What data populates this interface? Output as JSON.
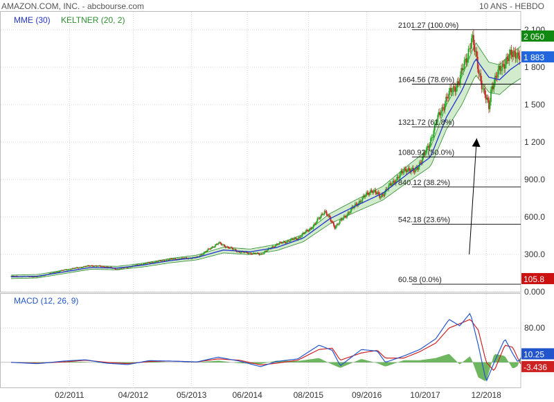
{
  "header": {
    "title": "AMAZON.COM, INC. - abcbourse.com",
    "period": "10 ANS - HEBDO"
  },
  "colors": {
    "candle_up": "#22aa22",
    "candle_down": "#cc2222",
    "mme": "#2233cc",
    "keltner_fill": "#c9e8c3",
    "keltner_line": "#2e8b2e",
    "fib_line": "#000000",
    "price_badge": "#2266dd",
    "high_badge": "#118811",
    "low_badge": "#cc1111",
    "macd_line": "#2255cc",
    "signal_line": "#cc2222",
    "histogram": "#55aa44"
  },
  "chart_data": [
    {
      "type": "line",
      "title": "AMAZON.COM, INC.",
      "legend": [
        "MME (30)",
        "KELTNER (20, 2)"
      ],
      "x_ticks": [
        "02/2011",
        "04/2012",
        "05/2013",
        "06/2014",
        "08/2015",
        "09/2016",
        "10/2017",
        "12/2018"
      ],
      "x_tick_pos": [
        2011.1,
        2012.3,
        2013.4,
        2014.45,
        2015.6,
        2016.7,
        2017.8,
        2018.95
      ],
      "x_range": [
        2010.0,
        2019.6
      ],
      "y_ticks": [
        "2 100",
        "1 800",
        "1 500",
        "1 200",
        "900.0",
        "600.0",
        "300.0",
        "0.000"
      ],
      "y_tick_values": [
        2100,
        1800,
        1500,
        1200,
        900,
        600,
        300,
        0
      ],
      "ylim": [
        0,
        2150
      ],
      "price_path": [
        [
          2010.0,
          125
        ],
        [
          2010.5,
          120
        ],
        [
          2011.0,
          175
        ],
        [
          2011.5,
          210
        ],
        [
          2011.8,
          200
        ],
        [
          2012.0,
          180
        ],
        [
          2012.5,
          225
        ],
        [
          2013.0,
          260
        ],
        [
          2013.5,
          275
        ],
        [
          2013.9,
          390
        ],
        [
          2014.3,
          320
        ],
        [
          2014.7,
          300
        ],
        [
          2015.0,
          380
        ],
        [
          2015.4,
          430
        ],
        [
          2015.7,
          530
        ],
        [
          2015.9,
          650
        ],
        [
          2016.1,
          520
        ],
        [
          2016.5,
          700
        ],
        [
          2016.8,
          820
        ],
        [
          2016.95,
          760
        ],
        [
          2017.2,
          880
        ],
        [
          2017.45,
          990
        ],
        [
          2017.6,
          960
        ],
        [
          2017.85,
          1150
        ],
        [
          2018.0,
          1350
        ],
        [
          2018.2,
          1550
        ],
        [
          2018.45,
          1700
        ],
        [
          2018.68,
          2030
        ],
        [
          2018.9,
          1600
        ],
        [
          2019.0,
          1480
        ],
        [
          2019.05,
          1650
        ],
        [
          2019.3,
          1850
        ],
        [
          2019.5,
          1920
        ],
        [
          2019.6,
          1880
        ]
      ],
      "mme_path": [
        [
          2010.0,
          120
        ],
        [
          2010.5,
          125
        ],
        [
          2011.0,
          160
        ],
        [
          2011.5,
          195
        ],
        [
          2012.0,
          190
        ],
        [
          2012.5,
          215
        ],
        [
          2013.0,
          250
        ],
        [
          2013.5,
          275
        ],
        [
          2014.0,
          335
        ],
        [
          2014.5,
          320
        ],
        [
          2015.0,
          355
        ],
        [
          2015.5,
          430
        ],
        [
          2016.0,
          585
        ],
        [
          2016.5,
          690
        ],
        [
          2017.0,
          790
        ],
        [
          2017.5,
          955
        ],
        [
          2017.9,
          1080
        ],
        [
          2018.2,
          1400
        ],
        [
          2018.5,
          1620
        ],
        [
          2018.75,
          1870
        ],
        [
          2019.0,
          1720
        ],
        [
          2019.2,
          1700
        ],
        [
          2019.4,
          1780
        ],
        [
          2019.6,
          1840
        ]
      ],
      "keltner_width_pct": 0.07,
      "fibonacci": [
        {
          "label": "2101.27  (100.0%)",
          "value": 2101.27
        },
        {
          "label": "1664.56  (78.6%)",
          "value": 1664.56
        },
        {
          "label": "1321.72  (61.8%)",
          "value": 1321.72
        },
        {
          "label": "1080.92  (50.0%)",
          "value": 1080.92
        },
        {
          "label": "840.12  (38.2%)",
          "value": 840.12
        },
        {
          "label": "542.18  (23.6%)",
          "value": 542.18
        },
        {
          "label": "60.58  (0.0%)",
          "value": 60.58
        }
      ],
      "fib_x_start": 2017.55,
      "badges": {
        "high": "2 050",
        "high_value": 2050,
        "last": "1 883",
        "last_value": 1883,
        "low": "105.8",
        "low_value": 105.8
      },
      "annotation_arrow": {
        "from": [
          2018.63,
          300
        ],
        "to": [
          2018.77,
          1230
        ]
      }
    },
    {
      "type": "line",
      "title": "MACD (12, 26, 9)",
      "legend": [
        "MACD (12, 26, 9)"
      ],
      "y_ticks": [
        "80.00"
      ],
      "y_tick_values": [
        80
      ],
      "ylim": [
        -60,
        140
      ],
      "macd_path": [
        [
          2010.0,
          0
        ],
        [
          2010.5,
          -3
        ],
        [
          2011.0,
          3
        ],
        [
          2011.4,
          6
        ],
        [
          2011.8,
          -2
        ],
        [
          2012.2,
          -5
        ],
        [
          2012.6,
          4
        ],
        [
          2013.0,
          3
        ],
        [
          2013.5,
          1
        ],
        [
          2013.9,
          12
        ],
        [
          2014.3,
          3
        ],
        [
          2014.7,
          -10
        ],
        [
          2015.0,
          2
        ],
        [
          2015.4,
          8
        ],
        [
          2015.8,
          40
        ],
        [
          2016.05,
          28
        ],
        [
          2016.2,
          -8
        ],
        [
          2016.6,
          30
        ],
        [
          2016.9,
          26
        ],
        [
          2017.05,
          0
        ],
        [
          2017.4,
          15
        ],
        [
          2017.7,
          30
        ],
        [
          2018.0,
          55
        ],
        [
          2018.25,
          100
        ],
        [
          2018.45,
          85
        ],
        [
          2018.65,
          115
        ],
        [
          2018.8,
          40
        ],
        [
          2018.95,
          -45
        ],
        [
          2019.1,
          0
        ],
        [
          2019.3,
          55
        ],
        [
          2019.45,
          20
        ],
        [
          2019.55,
          0
        ],
        [
          2019.6,
          10.25
        ]
      ],
      "signal_path": [
        [
          2010.0,
          0
        ],
        [
          2010.5,
          -2
        ],
        [
          2011.0,
          1
        ],
        [
          2011.4,
          5
        ],
        [
          2011.8,
          0
        ],
        [
          2012.2,
          -3
        ],
        [
          2012.6,
          2
        ],
        [
          2013.0,
          3
        ],
        [
          2013.5,
          1
        ],
        [
          2013.9,
          8
        ],
        [
          2014.3,
          5
        ],
        [
          2014.7,
          -6
        ],
        [
          2015.0,
          -2
        ],
        [
          2015.4,
          5
        ],
        [
          2015.8,
          30
        ],
        [
          2016.05,
          33
        ],
        [
          2016.2,
          5
        ],
        [
          2016.6,
          22
        ],
        [
          2016.9,
          28
        ],
        [
          2017.05,
          10
        ],
        [
          2017.4,
          10
        ],
        [
          2017.7,
          25
        ],
        [
          2018.0,
          45
        ],
        [
          2018.25,
          80
        ],
        [
          2018.45,
          90
        ],
        [
          2018.65,
          100
        ],
        [
          2018.8,
          75
        ],
        [
          2018.95,
          0
        ],
        [
          2019.1,
          -20
        ],
        [
          2019.3,
          40
        ],
        [
          2019.45,
          35
        ],
        [
          2019.55,
          8
        ],
        [
          2019.6,
          -3.43
        ]
      ],
      "badges": {
        "macd": "10.25",
        "macd_value": 10.25,
        "signal": "-3.436",
        "signal_value": -3.436
      }
    }
  ]
}
